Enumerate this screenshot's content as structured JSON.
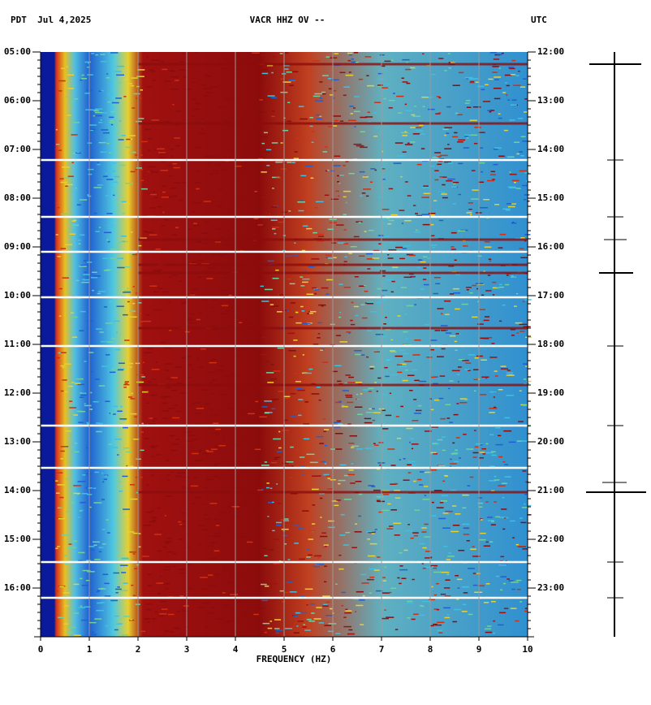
{
  "chart_data": {
    "type": "spectrogram",
    "left_label": "PDT  Jul 4,2025",
    "title": "VACR HHZ OV --",
    "right_label": "UTC",
    "xlabel": "FREQUENCY (HZ)",
    "xlim": [
      0,
      10
    ],
    "xticks": [
      0,
      1,
      2,
      3,
      4,
      5,
      6,
      7,
      8,
      9,
      10
    ],
    "ylim": [
      5,
      17
    ],
    "yticks": [
      {
        "value": 5,
        "label": "05:00"
      },
      {
        "value": 6,
        "label": "06:00"
      },
      {
        "value": 7,
        "label": "07:00"
      },
      {
        "value": 8,
        "label": "08:00"
      },
      {
        "value": 9,
        "label": "09:00"
      },
      {
        "value": 10,
        "label": "10:00"
      },
      {
        "value": 11,
        "label": "11:00"
      },
      {
        "value": 12,
        "label": "12:00"
      },
      {
        "value": 13,
        "label": "13:00"
      },
      {
        "value": 14,
        "label": "14:00"
      },
      {
        "value": 15,
        "label": "15:00"
      },
      {
        "value": 16,
        "label": "16:00"
      }
    ],
    "y2lim": [
      12,
      24
    ],
    "y2ticks": [
      {
        "value": 12,
        "label": "12:00"
      },
      {
        "value": 13,
        "label": "13:00"
      },
      {
        "value": 14,
        "label": "14:00"
      },
      {
        "value": 15,
        "label": "15:00"
      },
      {
        "value": 16,
        "label": "16:00"
      },
      {
        "value": 17,
        "label": "17:00"
      },
      {
        "value": 18,
        "label": "18:00"
      },
      {
        "value": 19,
        "label": "19:00"
      },
      {
        "value": 20,
        "label": "20:00"
      },
      {
        "value": 21,
        "label": "21:00"
      },
      {
        "value": 22,
        "label": "22:00"
      },
      {
        "value": 23,
        "label": "23:00"
      }
    ]
  }
}
